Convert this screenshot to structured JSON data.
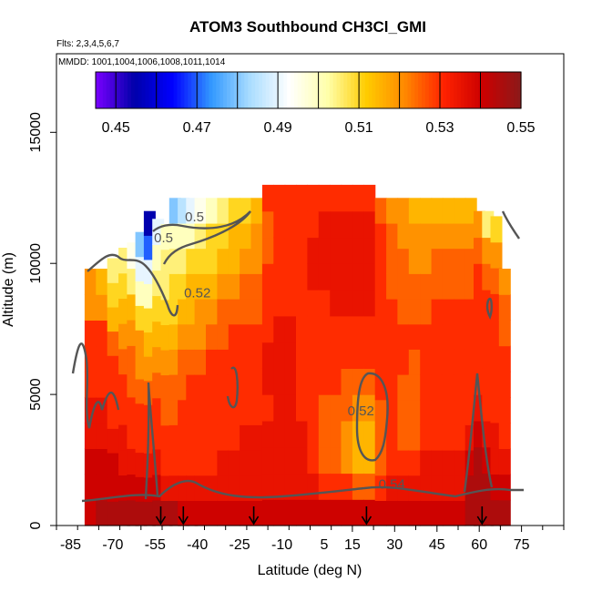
{
  "chart_data": {
    "type": "heatmap",
    "title": "ATOM3 Southbound CH3Cl_GMI",
    "flights_label": "Flts: 2,3,4,5,6,7",
    "dates_label": "MMDD: 1001,1004,1006,1008,1011,1014",
    "xlabel": "Latitude (deg N)",
    "ylabel": "Altitude (m)",
    "xlim": [
      -90,
      90
    ],
    "ylim": [
      0,
      18000
    ],
    "x_ticks": [
      -85,
      -70,
      -55,
      -40,
      -25,
      -10,
      5,
      15,
      30,
      45,
      60,
      75
    ],
    "y_ticks": [
      0,
      5000,
      10000,
      15000
    ],
    "colorbar": {
      "min": 0.445,
      "max": 0.55,
      "ticks": [
        0.45,
        0.47,
        0.49,
        0.51,
        0.53,
        0.55
      ],
      "colors": [
        "#7a00ff",
        "#0000aa",
        "#0000ff",
        "#3399ff",
        "#aaddff",
        "#ffffff",
        "#ffffaa",
        "#ffcc00",
        "#ff8800",
        "#ff2200",
        "#cc0000",
        "#8b1a1a"
      ]
    },
    "contour_levels": [
      0.5,
      0.52,
      0.54
    ],
    "contour_labels": [
      {
        "text": "0.5",
        "lat": -41,
        "alt": 11600
      },
      {
        "text": "0.52",
        "lat": -40,
        "alt": 8700
      },
      {
        "text": "0.52",
        "lat": 18,
        "alt": 4200
      },
      {
        "text": "0.54",
        "lat": 29,
        "alt": 1400
      },
      {
        "text": "0.5",
        "lat": -52,
        "alt": 10800
      }
    ],
    "arrow_lats": [
      -53,
      -45,
      -20,
      20,
      61
    ],
    "profiles": [
      {
        "lat": -78,
        "top": 9800,
        "vals": [
          0.54,
          0.54,
          0.54,
          0.535,
          0.535,
          0.53,
          0.53,
          0.53,
          0.52,
          0.52
        ]
      },
      {
        "lat": -74,
        "top": 9800,
        "vals": [
          0.545,
          0.54,
          0.54,
          0.535,
          0.535,
          0.53,
          0.53,
          0.53,
          0.52,
          0.515
        ]
      },
      {
        "lat": -70,
        "top": 10200,
        "vals": [
          0.545,
          0.54,
          0.54,
          0.535,
          0.53,
          0.53,
          0.53,
          0.525,
          0.515,
          0.51,
          0.505
        ]
      },
      {
        "lat": -66,
        "top": 10600,
        "vals": [
          0.545,
          0.54,
          0.535,
          0.535,
          0.53,
          0.53,
          0.525,
          0.52,
          0.515,
          0.51,
          0.505
        ]
      },
      {
        "lat": -63,
        "top": 10800,
        "vals": [
          0.545,
          0.54,
          0.535,
          0.53,
          0.53,
          0.525,
          0.525,
          0.52,
          0.515,
          0.505,
          0.495
        ]
      },
      {
        "lat": -60,
        "top": 11200,
        "vals": [
          0.545,
          0.54,
          0.535,
          0.53,
          0.53,
          0.525,
          0.52,
          0.52,
          0.51,
          0.5,
          0.49,
          0.48
        ]
      },
      {
        "lat": -57,
        "top": 12000,
        "vals": [
          0.545,
          0.54,
          0.535,
          0.53,
          0.53,
          0.525,
          0.52,
          0.515,
          0.51,
          0.5,
          0.49,
          0.47,
          0.455
        ]
      },
      {
        "lat": -54,
        "top": 11700,
        "vals": [
          0.545,
          0.54,
          0.535,
          0.53,
          0.53,
          0.525,
          0.52,
          0.515,
          0.51,
          0.505,
          0.5,
          0.49
        ]
      },
      {
        "lat": -51,
        "top": 11500,
        "vals": [
          0.545,
          0.535,
          0.53,
          0.53,
          0.525,
          0.525,
          0.52,
          0.515,
          0.51,
          0.505,
          0.505,
          0.5
        ]
      },
      {
        "lat": -48,
        "top": 12500,
        "vals": [
          0.545,
          0.535,
          0.53,
          0.53,
          0.525,
          0.525,
          0.52,
          0.515,
          0.51,
          0.51,
          0.505,
          0.5,
          0.48
        ]
      },
      {
        "lat": -45,
        "top": 12500,
        "vals": [
          0.54,
          0.535,
          0.53,
          0.53,
          0.53,
          0.525,
          0.525,
          0.52,
          0.515,
          0.51,
          0.505,
          0.5,
          0.485
        ]
      },
      {
        "lat": -42,
        "top": 12500,
        "vals": [
          0.54,
          0.535,
          0.53,
          0.53,
          0.53,
          0.53,
          0.525,
          0.52,
          0.515,
          0.515,
          0.51,
          0.5,
          0.49
        ]
      },
      {
        "lat": -39,
        "top": 12500,
        "vals": [
          0.54,
          0.535,
          0.53,
          0.53,
          0.53,
          0.53,
          0.525,
          0.52,
          0.52,
          0.515,
          0.51,
          0.505,
          0.495
        ]
      },
      {
        "lat": -35,
        "top": 12500,
        "vals": [
          0.54,
          0.535,
          0.53,
          0.53,
          0.53,
          0.53,
          0.53,
          0.525,
          0.52,
          0.515,
          0.51,
          0.51,
          0.5
        ]
      },
      {
        "lat": -31,
        "top": 12500,
        "vals": [
          0.54,
          0.535,
          0.535,
          0.53,
          0.53,
          0.53,
          0.53,
          0.525,
          0.525,
          0.52,
          0.515,
          0.51,
          0.505
        ]
      },
      {
        "lat": -27,
        "top": 12500,
        "vals": [
          0.54,
          0.535,
          0.535,
          0.53,
          0.53,
          0.53,
          0.53,
          0.53,
          0.525,
          0.52,
          0.515,
          0.515,
          0.51
        ]
      },
      {
        "lat": -23,
        "top": 12500,
        "vals": [
          0.54,
          0.535,
          0.535,
          0.535,
          0.53,
          0.53,
          0.53,
          0.53,
          0.525,
          0.525,
          0.52,
          0.515,
          0.51
        ]
      },
      {
        "lat": -19,
        "top": 12500,
        "vals": [
          0.54,
          0.535,
          0.535,
          0.535,
          0.53,
          0.53,
          0.53,
          0.53,
          0.525,
          0.525,
          0.52,
          0.52,
          0.515
        ]
      },
      {
        "lat": -15,
        "top": 13000,
        "vals": [
          0.54,
          0.535,
          0.535,
          0.535,
          0.53,
          0.535,
          0.535,
          0.53,
          0.53,
          0.53,
          0.525,
          0.525,
          0.53
        ]
      },
      {
        "lat": -11,
        "top": 13000,
        "vals": [
          0.54,
          0.535,
          0.535,
          0.535,
          0.535,
          0.535,
          0.535,
          0.535,
          0.53,
          0.53,
          0.53,
          0.53,
          0.53
        ]
      },
      {
        "lat": -7,
        "top": 13000,
        "vals": [
          0.54,
          0.535,
          0.535,
          0.535,
          0.535,
          0.535,
          0.535,
          0.535,
          0.53,
          0.53,
          0.53,
          0.53,
          0.53
        ]
      },
      {
        "lat": -3,
        "top": 13000,
        "vals": [
          0.54,
          0.535,
          0.535,
          0.535,
          0.53,
          0.53,
          0.53,
          0.53,
          0.53,
          0.53,
          0.53,
          0.53,
          0.53
        ]
      },
      {
        "lat": 1,
        "top": 13000,
        "vals": [
          0.54,
          0.535,
          0.53,
          0.53,
          0.53,
          0.53,
          0.53,
          0.53,
          0.53,
          0.535,
          0.535,
          0.53,
          0.53
        ]
      },
      {
        "lat": 5,
        "top": 13000,
        "vals": [
          0.54,
          0.53,
          0.525,
          0.525,
          0.525,
          0.53,
          0.53,
          0.53,
          0.53,
          0.535,
          0.535,
          0.535,
          0.53
        ]
      },
      {
        "lat": 9,
        "top": 13000,
        "vals": [
          0.54,
          0.53,
          0.525,
          0.525,
          0.525,
          0.53,
          0.53,
          0.53,
          0.535,
          0.535,
          0.535,
          0.535,
          0.53
        ]
      },
      {
        "lat": 13,
        "top": 13000,
        "vals": [
          0.54,
          0.53,
          0.52,
          0.52,
          0.525,
          0.525,
          0.53,
          0.53,
          0.535,
          0.535,
          0.535,
          0.535,
          0.53
        ]
      },
      {
        "lat": 17,
        "top": 13000,
        "vals": [
          0.54,
          0.525,
          0.515,
          0.515,
          0.52,
          0.525,
          0.53,
          0.53,
          0.535,
          0.535,
          0.535,
          0.535,
          0.53
        ]
      },
      {
        "lat": 21,
        "top": 13000,
        "vals": [
          0.54,
          0.525,
          0.515,
          0.515,
          0.52,
          0.525,
          0.53,
          0.53,
          0.535,
          0.535,
          0.535,
          0.535,
          0.53
        ]
      },
      {
        "lat": 25,
        "top": 12500,
        "vals": [
          0.54,
          0.53,
          0.525,
          0.525,
          0.525,
          0.53,
          0.53,
          0.53,
          0.53,
          0.53,
          0.53,
          0.53,
          0.525
        ]
      },
      {
        "lat": 29,
        "top": 12500,
        "vals": [
          0.54,
          0.535,
          0.53,
          0.53,
          0.53,
          0.53,
          0.53,
          0.53,
          0.53,
          0.525,
          0.525,
          0.525,
          0.52
        ]
      },
      {
        "lat": 33,
        "top": 12500,
        "vals": [
          0.54,
          0.535,
          0.53,
          0.525,
          0.525,
          0.525,
          0.53,
          0.53,
          0.525,
          0.525,
          0.525,
          0.52,
          0.52
        ]
      },
      {
        "lat": 37,
        "top": 12500,
        "vals": [
          0.54,
          0.535,
          0.53,
          0.525,
          0.525,
          0.525,
          0.525,
          0.53,
          0.525,
          0.525,
          0.52,
          0.52,
          0.515
        ]
      },
      {
        "lat": 41,
        "top": 12500,
        "vals": [
          0.54,
          0.535,
          0.535,
          0.53,
          0.53,
          0.53,
          0.53,
          0.53,
          0.525,
          0.525,
          0.52,
          0.52,
          0.515
        ]
      },
      {
        "lat": 45,
        "top": 12500,
        "vals": [
          0.54,
          0.535,
          0.535,
          0.53,
          0.53,
          0.53,
          0.53,
          0.53,
          0.53,
          0.525,
          0.525,
          0.52,
          0.515
        ]
      },
      {
        "lat": 49,
        "top": 12500,
        "vals": [
          0.54,
          0.535,
          0.535,
          0.53,
          0.53,
          0.53,
          0.53,
          0.53,
          0.53,
          0.525,
          0.525,
          0.52,
          0.515
        ]
      },
      {
        "lat": 53,
        "top": 12500,
        "vals": [
          0.54,
          0.535,
          0.535,
          0.53,
          0.53,
          0.53,
          0.53,
          0.53,
          0.53,
          0.525,
          0.525,
          0.52,
          0.515
        ]
      },
      {
        "lat": 57,
        "top": 12500,
        "vals": [
          0.545,
          0.545,
          0.54,
          0.535,
          0.53,
          0.53,
          0.53,
          0.53,
          0.53,
          0.525,
          0.525,
          0.52,
          0.515
        ]
      },
      {
        "lat": 60,
        "top": 12000,
        "vals": [
          0.545,
          0.545,
          0.545,
          0.54,
          0.535,
          0.53,
          0.53,
          0.53,
          0.53,
          0.53,
          0.525,
          0.52
        ]
      },
      {
        "lat": 63,
        "top": 12000,
        "vals": [
          0.545,
          0.545,
          0.54,
          0.535,
          0.53,
          0.53,
          0.53,
          0.53,
          0.53,
          0.525,
          0.52,
          0.505
        ]
      },
      {
        "lat": 66,
        "top": 11800,
        "vals": [
          0.545,
          0.54,
          0.535,
          0.535,
          0.53,
          0.53,
          0.53,
          0.53,
          0.53,
          0.525,
          0.52,
          0.51
        ]
      },
      {
        "lat": 69,
        "top": 9800,
        "vals": [
          0.545,
          0.54,
          0.535,
          0.53,
          0.53,
          0.53,
          0.53,
          0.525,
          0.525,
          0.52
        ]
      }
    ]
  }
}
